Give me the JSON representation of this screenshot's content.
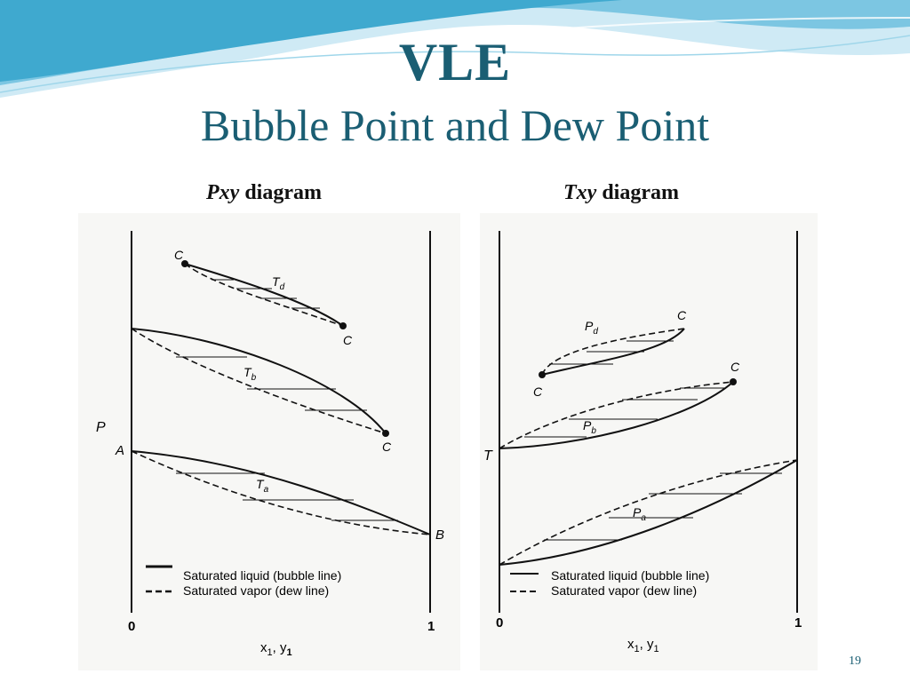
{
  "slide": {
    "title": "VLE",
    "subtitle": "Bubble Point and Dew Point",
    "page_number": "19"
  },
  "pxy": {
    "caption_italic": "Pxy",
    "caption_rest": " diagram",
    "y_axis_label": "P",
    "x_axis_label": "x",
    "x_axis_label_sub1": "1",
    "x_axis_label_mid": ", y",
    "x_axis_label_sub2": "1",
    "tick_zero": "0",
    "tick_one": "1",
    "point_A": "A",
    "point_B": "B",
    "critical_label": "C",
    "curve_Td": "T",
    "curve_Td_sub": "d",
    "curve_Tb": "T",
    "curve_Tb_sub": "b",
    "curve_Ta": "T",
    "curve_Ta_sub": "a",
    "legend_liquid": "Saturated liquid (bubble line)",
    "legend_vapor": "Saturated vapor (dew line)"
  },
  "txy": {
    "caption_italic": "Txy",
    "caption_rest": " diagram",
    "y_axis_label": "T",
    "x_axis_label": "x",
    "x_axis_label_sub1": "1",
    "x_axis_label_mid": ", y",
    "x_axis_label_sub2": "1",
    "tick_zero": "0",
    "tick_one": "1",
    "critical_label": "C",
    "curve_Pd": "P",
    "curve_Pd_sub": "d",
    "curve_Pb": "P",
    "curve_Pb_sub": "b",
    "curve_Pa": "P",
    "curve_Pa_sub": "a",
    "legend_liquid": "Saturated liquid (bubble line)",
    "legend_vapor": "Saturated vapor (dew line)"
  },
  "colors": {
    "title": "#1a5e73",
    "wave_dark": "#3fa9cf",
    "wave_light": "#cfeaf5"
  }
}
